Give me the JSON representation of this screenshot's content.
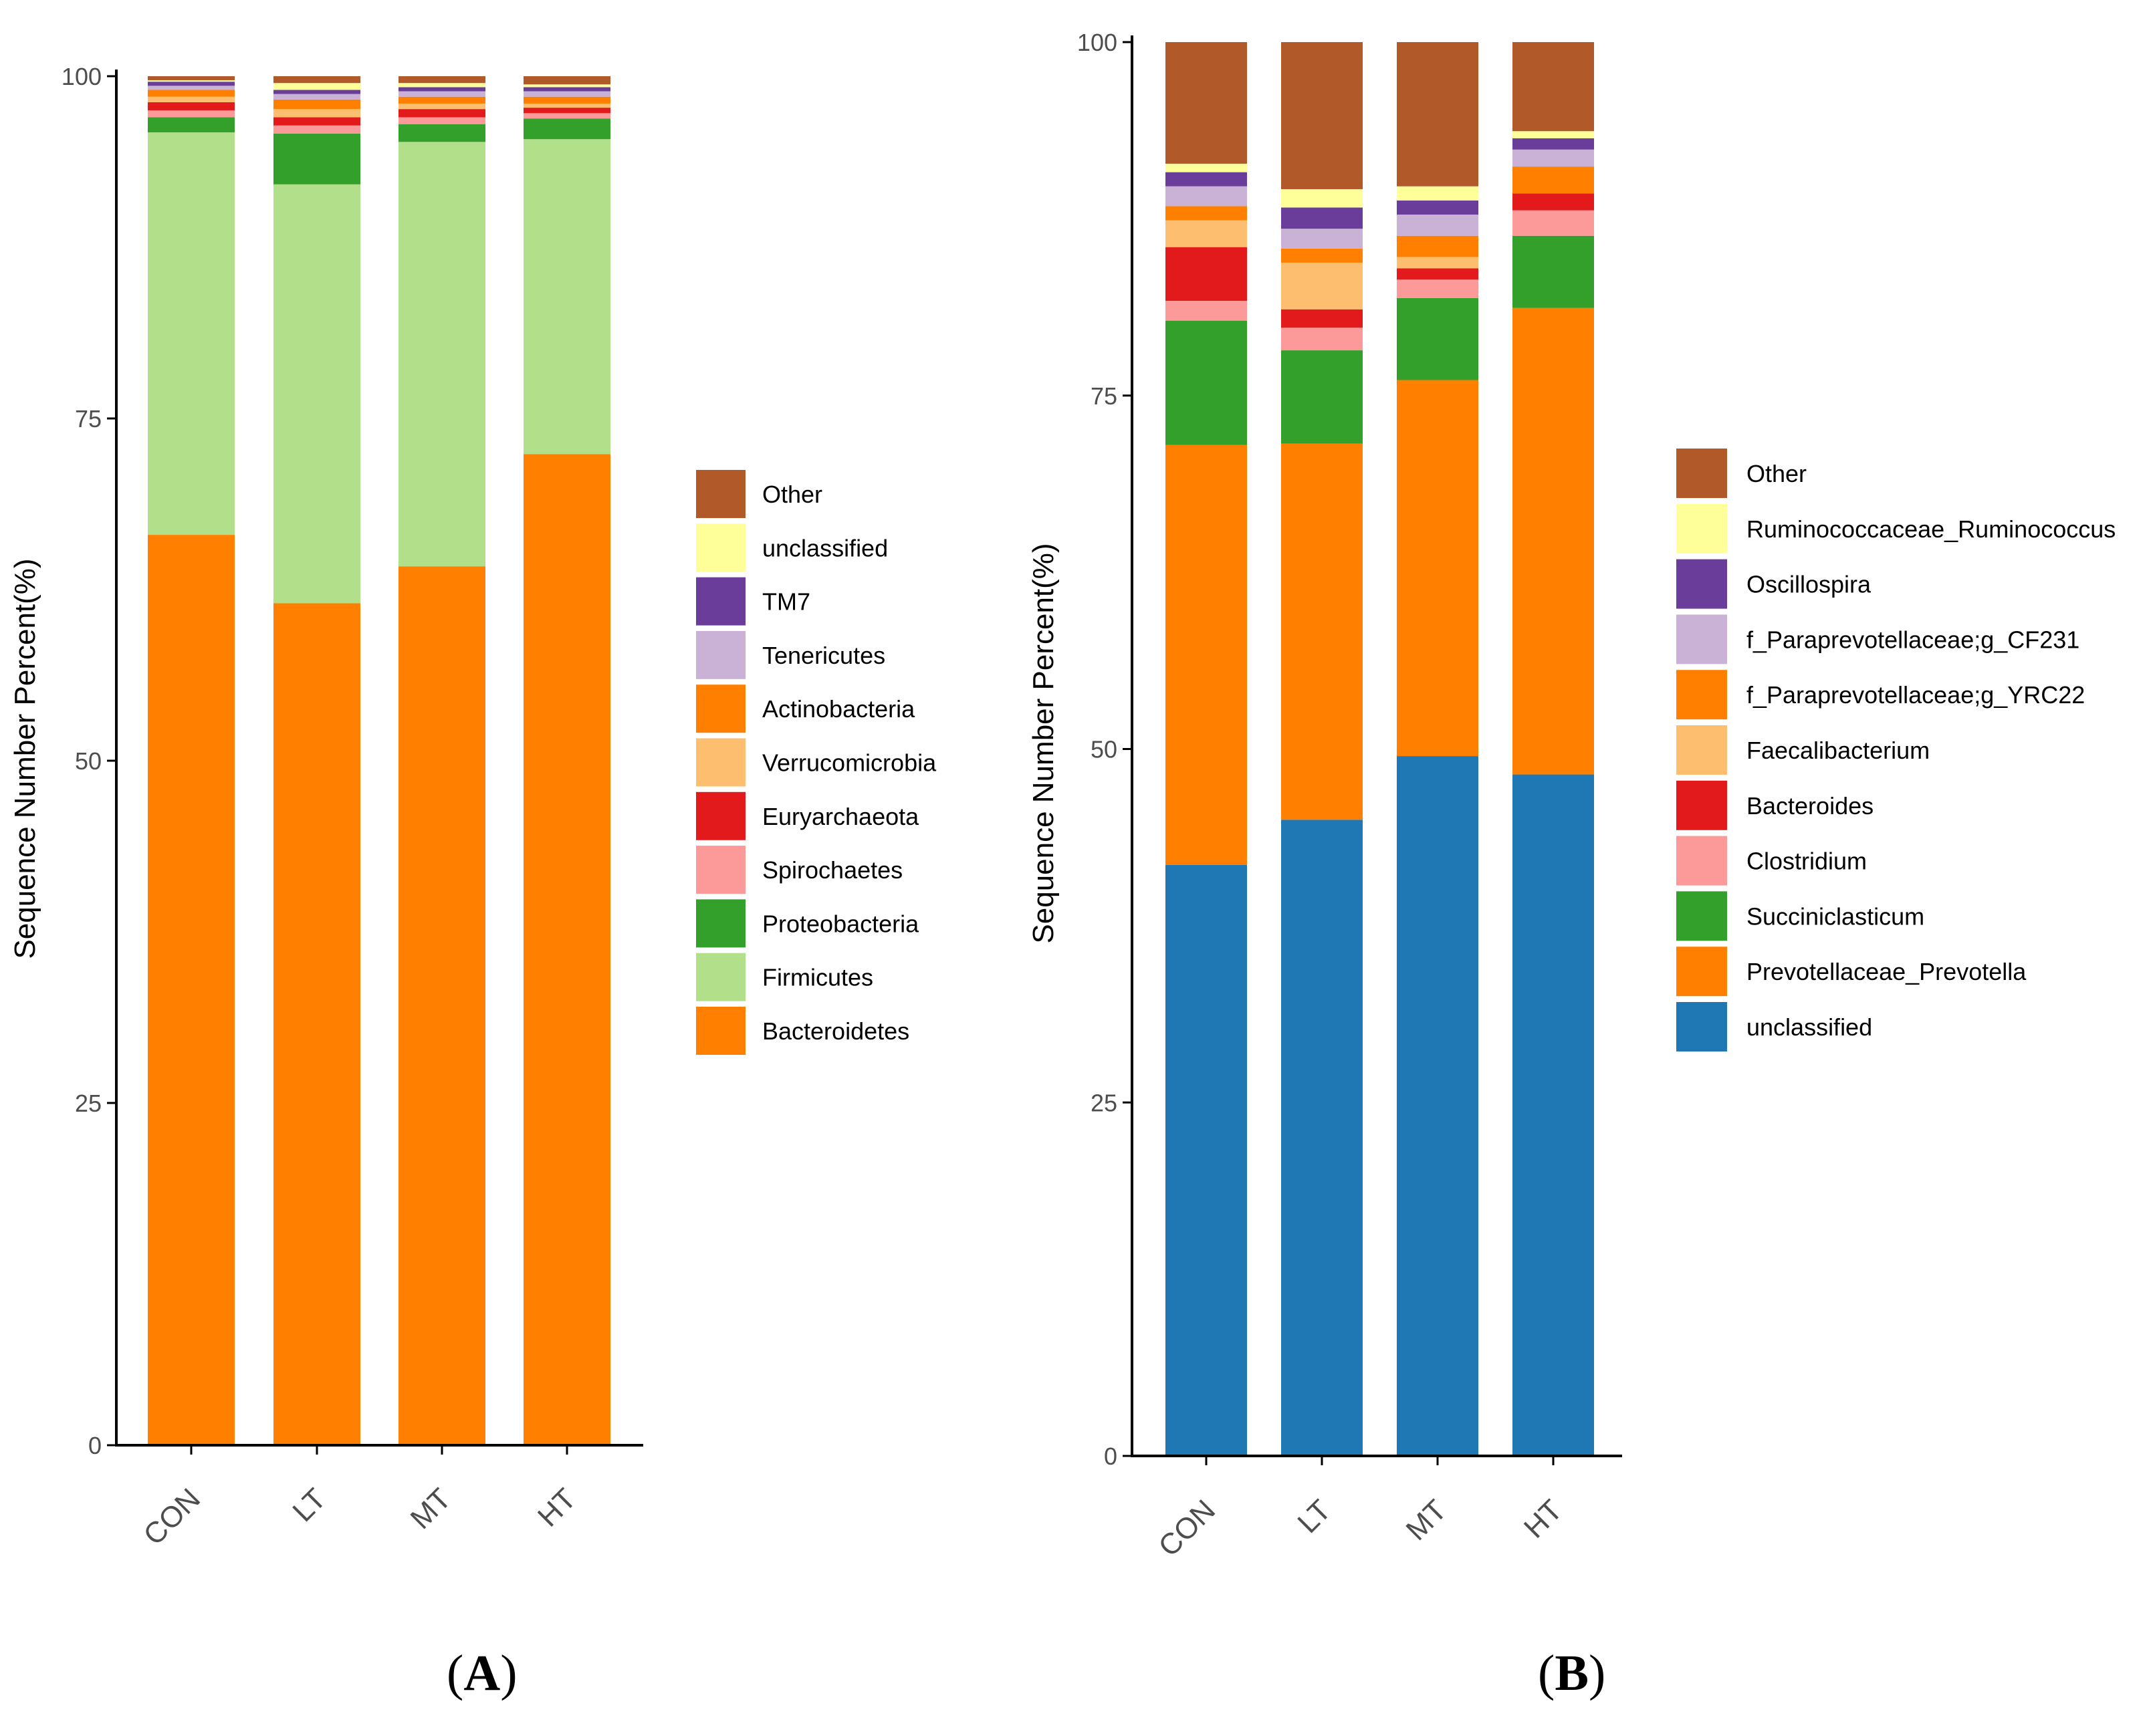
{
  "chart_data": [
    {
      "type": "bar",
      "stacked": true,
      "panel": "A",
      "ylabel": "Sequence Number Percent(%)",
      "ylim": [
        0,
        100
      ],
      "yticks": [
        0,
        25,
        50,
        75,
        100
      ],
      "categories": [
        "CON",
        "LT",
        "MT",
        "HT"
      ],
      "series": [
        {
          "name": "Bacteroidetes",
          "color": "#ff7f00",
          "values": [
            66.5,
            61.5,
            64.2,
            72.4
          ]
        },
        {
          "name": "Firmicutes",
          "color": "#b2df8a",
          "values": [
            29.4,
            30.6,
            31.0,
            23.0
          ]
        },
        {
          "name": "Proteobacteria",
          "color": "#33a02c",
          "values": [
            1.1,
            3.7,
            1.3,
            1.5
          ]
        },
        {
          "name": "Spirochaetes",
          "color": "#fb9a99",
          "values": [
            0.5,
            0.6,
            0.5,
            0.4
          ]
        },
        {
          "name": "Euryarchaeota",
          "color": "#e31a1c",
          "values": [
            0.6,
            0.6,
            0.6,
            0.4
          ]
        },
        {
          "name": "Verrucomicrobia",
          "color": "#fdbf6f",
          "values": [
            0.4,
            0.6,
            0.4,
            0.3
          ]
        },
        {
          "name": "Actinobacteria",
          "color": "#ff7f00",
          "values": [
            0.5,
            0.7,
            0.5,
            0.5
          ]
        },
        {
          "name": "Tenericutes",
          "color": "#cab2d6",
          "values": [
            0.3,
            0.4,
            0.4,
            0.4
          ]
        },
        {
          "name": "TM7",
          "color": "#6a3d9a",
          "values": [
            0.3,
            0.3,
            0.3,
            0.3
          ]
        },
        {
          "name": "unclassified",
          "color": "#ffff99",
          "values": [
            0.1,
            0.5,
            0.3,
            0.2
          ]
        },
        {
          "name": "Other",
          "color": "#b15928",
          "values": [
            0.3,
            0.5,
            0.5,
            0.6
          ]
        }
      ],
      "legend": [
        "Other",
        "unclassified",
        "TM7",
        "Tenericutes",
        "Actinobacteria",
        "Verrucomicrobia",
        "Euryarchaeota",
        "Spirochaetes",
        "Proteobacteria",
        "Firmicutes",
        "Bacteroidetes"
      ],
      "legend_position": "right"
    },
    {
      "type": "bar",
      "stacked": true,
      "panel": "B",
      "ylabel": "Sequence Number Percent(%)",
      "ylim": [
        0,
        100
      ],
      "yticks": [
        0,
        25,
        50,
        75,
        100
      ],
      "categories": [
        "CON",
        "LT",
        "MT",
        "HT"
      ],
      "series": [
        {
          "name": "unclassified",
          "color": "#1f78b4",
          "values": [
            41.8,
            45.0,
            49.5,
            48.2
          ]
        },
        {
          "name": "Prevotellaceae_Prevotella",
          "color": "#ff7f00",
          "values": [
            29.7,
            26.6,
            26.6,
            33.0
          ]
        },
        {
          "name": "Succiniclasticum",
          "color": "#33a02c",
          "values": [
            8.8,
            6.6,
            5.8,
            5.1
          ]
        },
        {
          "name": "Clostridium",
          "color": "#fb9a99",
          "values": [
            1.4,
            1.6,
            1.3,
            1.8
          ]
        },
        {
          "name": "Bacteroides",
          "color": "#e31a1c",
          "values": [
            3.8,
            1.3,
            0.8,
            1.2
          ]
        },
        {
          "name": "Faecalibacterium",
          "color": "#fdbf6f",
          "values": [
            1.9,
            3.3,
            0.8,
            0.0
          ]
        },
        {
          "name": "f_Paraprevotellaceae;g_YRC22",
          "color": "#ff7f00",
          "values": [
            1.0,
            1.0,
            1.5,
            1.9
          ]
        },
        {
          "name": "f_Paraprevotellaceae;g_CF231",
          "color": "#cab2d6",
          "values": [
            1.4,
            1.4,
            1.5,
            1.2
          ]
        },
        {
          "name": "Oscillospira",
          "color": "#6a3d9a",
          "values": [
            1.0,
            1.5,
            1.0,
            0.8
          ]
        },
        {
          "name": "Ruminococcaceae_Ruminococcus",
          "color": "#ffff99",
          "values": [
            0.6,
            1.3,
            1.0,
            0.5
          ]
        },
        {
          "name": "Other",
          "color": "#b15928",
          "values": [
            8.6,
            10.4,
            10.2,
            6.3
          ]
        }
      ],
      "legend": [
        "Other",
        "Ruminococcaceae_Ruminococcus",
        "Oscillospira",
        "f_Paraprevotellaceae;g_CF231",
        "f_Paraprevotellaceae;g_YRC22",
        "Faecalibacterium",
        "Bacteroides",
        "Clostridium",
        "Succiniclasticum",
        "Prevotellaceae_Prevotella",
        "unclassified"
      ],
      "legend_position": "right"
    }
  ],
  "panel_labels": [
    "A",
    "B"
  ]
}
